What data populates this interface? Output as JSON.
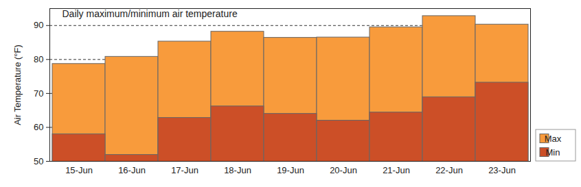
{
  "chart_data": {
    "type": "bar",
    "title": "Daily maximum/minimum air temperature",
    "ylabel": "Air Temperature (°F)",
    "categories": [
      "15-Jun",
      "16-Jun",
      "17-Jun",
      "18-Jun",
      "19-Jun",
      "20-Jun",
      "21-Jun",
      "22-Jun",
      "23-Jun"
    ],
    "series": [
      {
        "name": "Max",
        "color": "#f89b3c",
        "values": [
          78.7,
          80.8,
          85.3,
          88.2,
          86.4,
          86.5,
          89.5,
          92.8,
          90.3
        ]
      },
      {
        "name": "Min",
        "color": "#cc4f27",
        "values": [
          58.0,
          51.9,
          62.8,
          66.2,
          64.0,
          62.0,
          64.4,
          68.9,
          73.2
        ]
      }
    ],
    "ylim": [
      50,
      95
    ],
    "yticks": [
      50,
      60,
      70,
      80,
      90
    ],
    "grid": true,
    "legend": "bottom-right",
    "stacked": false
  }
}
